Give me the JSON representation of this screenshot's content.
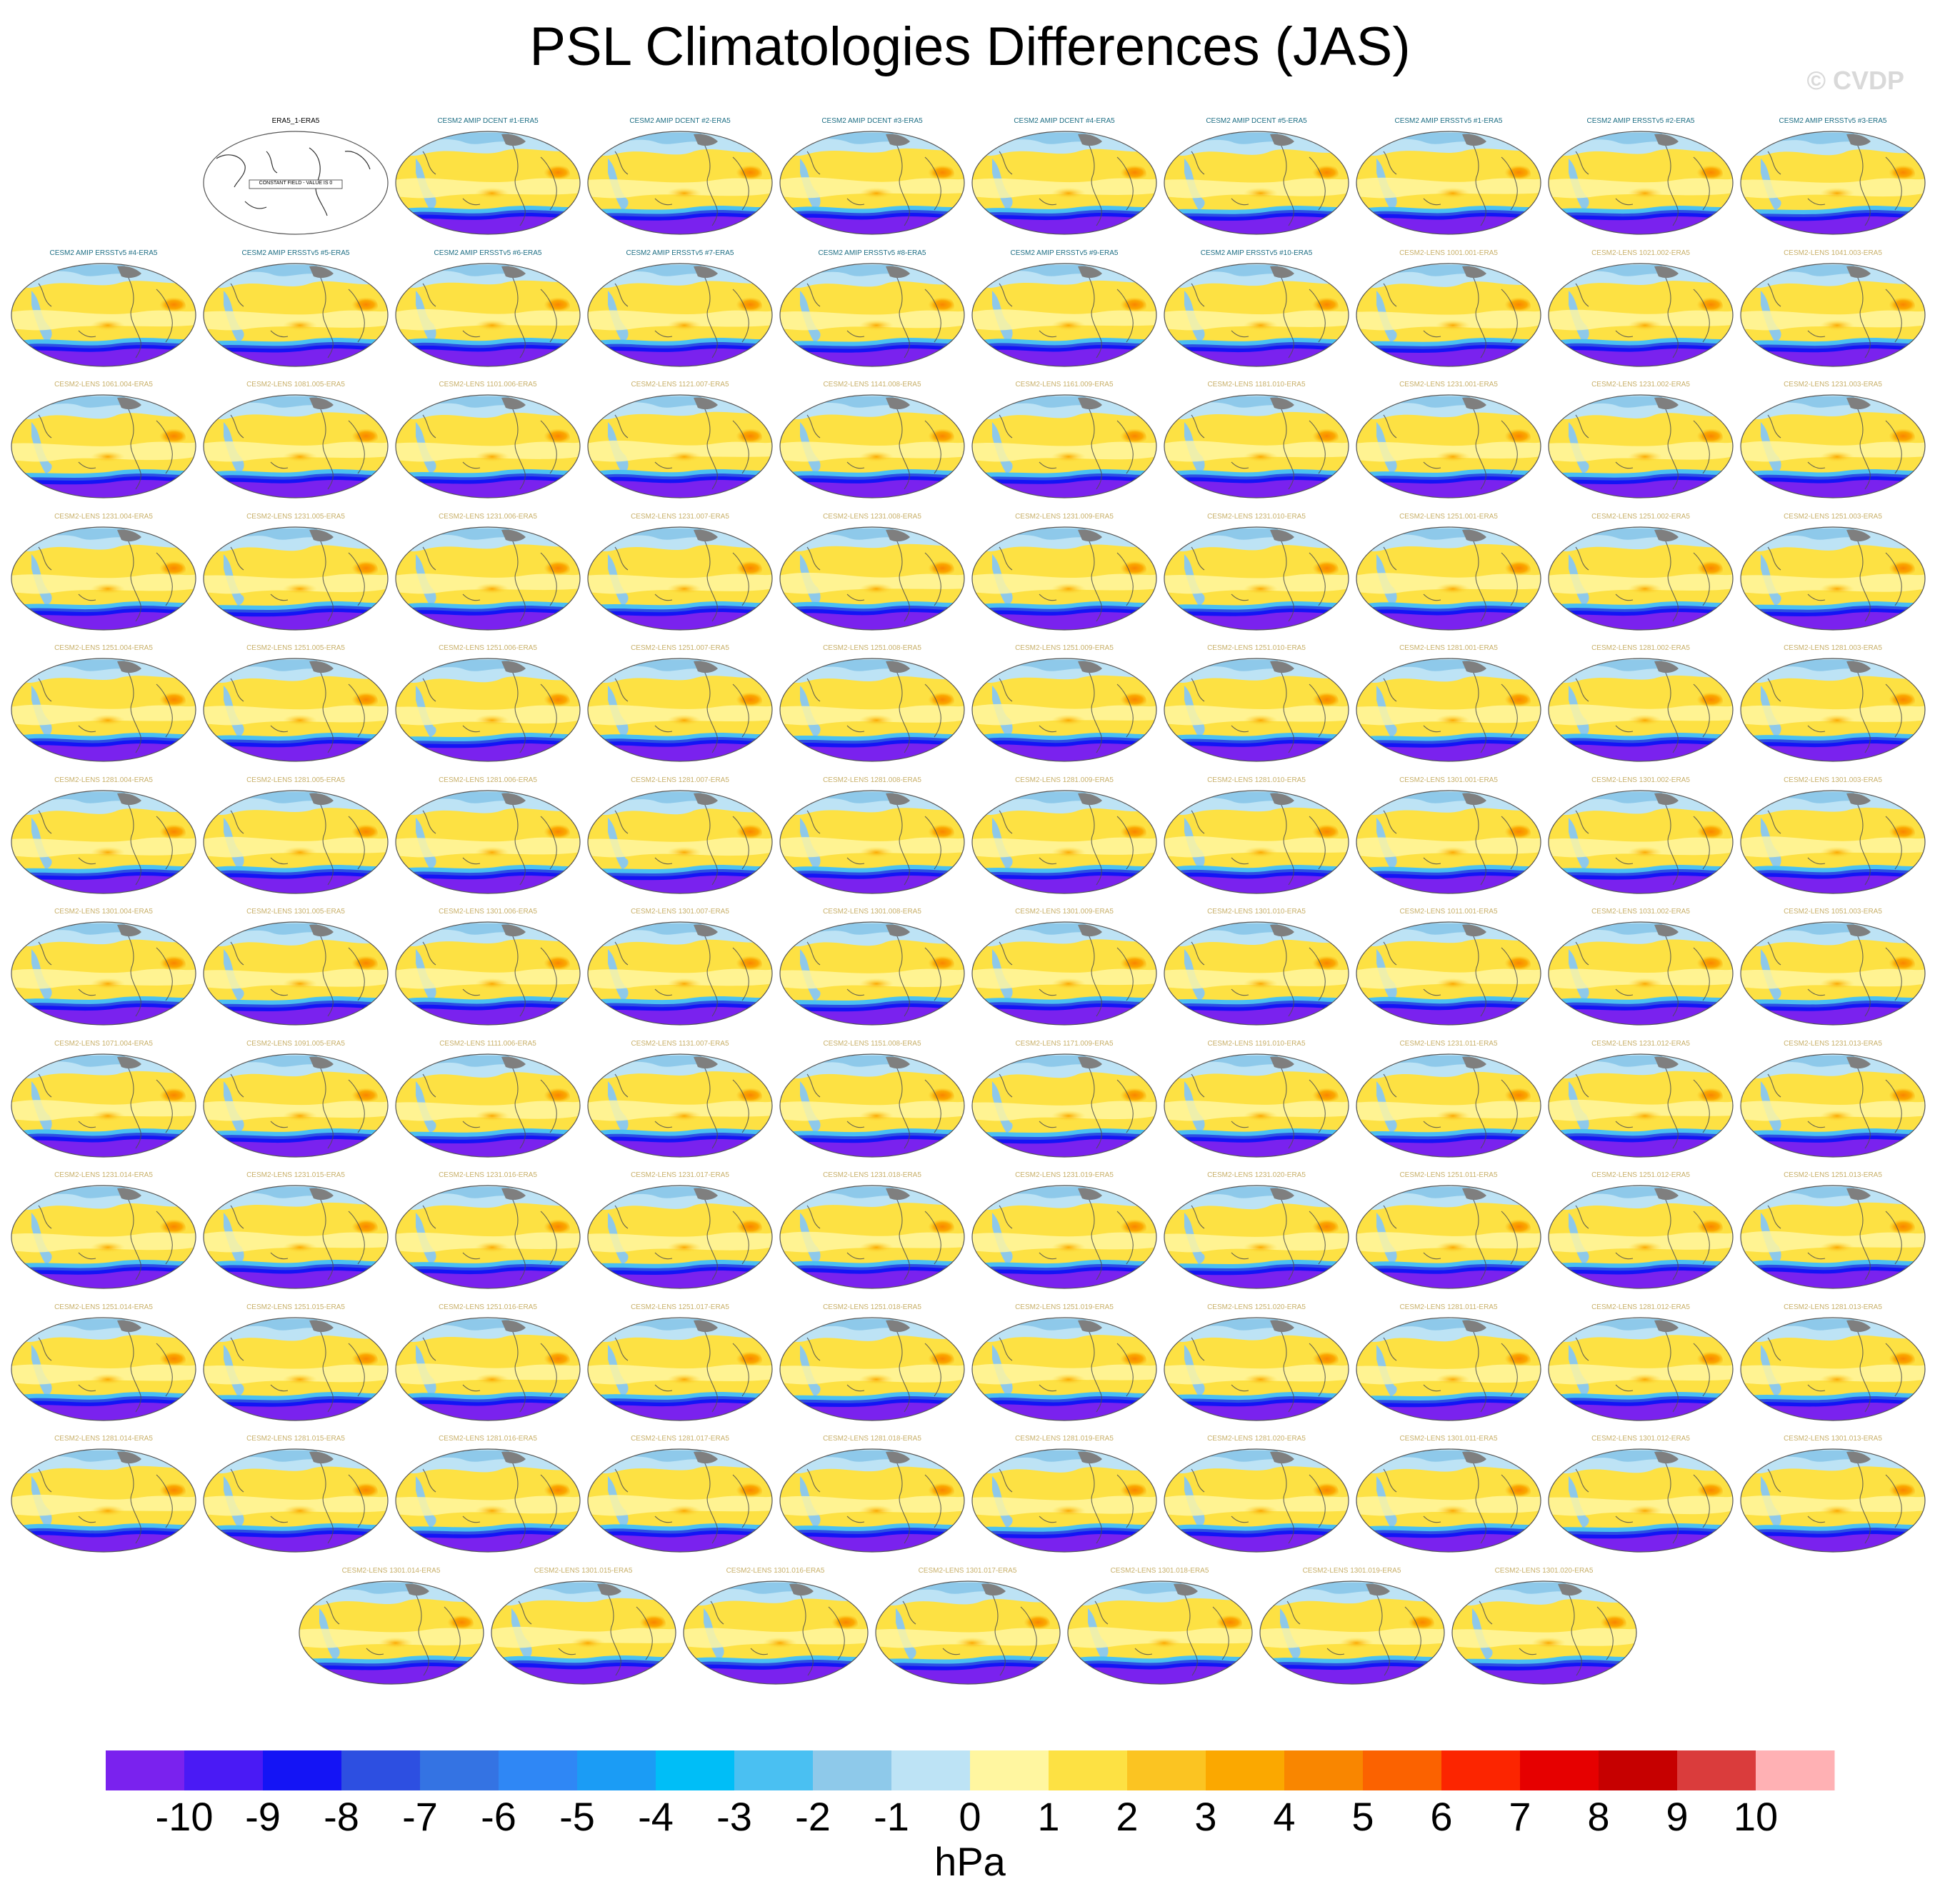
{
  "title": "PSL Climatologies Differences (JAS)",
  "copyright": "© CVDP",
  "chart_data": {
    "type": "map-panel-grid",
    "variable": "PSL",
    "season": "JAS",
    "units": "hPa",
    "colorbar": {
      "ticks": [
        "-10",
        "-9",
        "-8",
        "-7",
        "-6",
        "-5",
        "-4",
        "-3",
        "-2",
        "-1",
        "0",
        "1",
        "2",
        "3",
        "4",
        "5",
        "6",
        "7",
        "8",
        "9",
        "10"
      ],
      "colors": [
        "#7a22ee",
        "#4a1af5",
        "#1414f5",
        "#2d4fe1",
        "#3473e3",
        "#2f87f5",
        "#1b9cf5",
        "#00bef7",
        "#4ac0f2",
        "#8ec9ea",
        "#bde3f5",
        "#fff6a0",
        "#fde143",
        "#fbc422",
        "#fba800",
        "#f98600",
        "#fb6200",
        "#fc2500",
        "#e60000",
        "#c60000",
        "#da3c3c",
        "#ffb1b4"
      ],
      "label": "hPa"
    },
    "panels": [
      {
        "title": "ERA5_1-ERA5",
        "kind": "obs",
        "note": "CONSTANT FIELD - VALUE IS 0"
      },
      {
        "title": "CESM2 AMIP DCENT #1-ERA5",
        "kind": "amip"
      },
      {
        "title": "CESM2 AMIP DCENT #2-ERA5",
        "kind": "amip"
      },
      {
        "title": "CESM2 AMIP DCENT #3-ERA5",
        "kind": "amip"
      },
      {
        "title": "CESM2 AMIP DCENT #4-ERA5",
        "kind": "amip"
      },
      {
        "title": "CESM2 AMIP DCENT #5-ERA5",
        "kind": "amip"
      },
      {
        "title": "CESM2 AMIP ERSSTv5 #1-ERA5",
        "kind": "amip"
      },
      {
        "title": "CESM2 AMIP ERSSTv5 #2-ERA5",
        "kind": "amip"
      },
      {
        "title": "CESM2 AMIP ERSSTv5 #3-ERA5",
        "kind": "amip"
      },
      {
        "title": "CESM2 AMIP ERSSTv5 #4-ERA5",
        "kind": "amip"
      },
      {
        "title": "CESM2 AMIP ERSSTv5 #5-ERA5",
        "kind": "amip"
      },
      {
        "title": "CESM2 AMIP ERSSTv5 #6-ERA5",
        "kind": "amip"
      },
      {
        "title": "CESM2 AMIP ERSSTv5 #7-ERA5",
        "kind": "amip"
      },
      {
        "title": "CESM2 AMIP ERSSTv5 #8-ERA5",
        "kind": "amip"
      },
      {
        "title": "CESM2 AMIP ERSSTv5 #9-ERA5",
        "kind": "amip"
      },
      {
        "title": "CESM2 AMIP ERSSTv5 #10-ERA5",
        "kind": "amip"
      },
      {
        "title": "CESM2-LENS 1001.001-ERA5",
        "kind": "lens"
      },
      {
        "title": "CESM2-LENS 1021.002-ERA5",
        "kind": "lens"
      },
      {
        "title": "CESM2-LENS 1041.003-ERA5",
        "kind": "lens"
      },
      {
        "title": "CESM2-LENS 1061.004-ERA5",
        "kind": "lens"
      },
      {
        "title": "CESM2-LENS 1081.005-ERA5",
        "kind": "lens"
      },
      {
        "title": "CESM2-LENS 1101.006-ERA5",
        "kind": "lens"
      },
      {
        "title": "CESM2-LENS 1121.007-ERA5",
        "kind": "lens"
      },
      {
        "title": "CESM2-LENS 1141.008-ERA5",
        "kind": "lens"
      },
      {
        "title": "CESM2-LENS 1161.009-ERA5",
        "kind": "lens"
      },
      {
        "title": "CESM2-LENS 1181.010-ERA5",
        "kind": "lens"
      },
      {
        "title": "CESM2-LENS 1231.001-ERA5",
        "kind": "lens"
      },
      {
        "title": "CESM2-LENS 1231.002-ERA5",
        "kind": "lens"
      },
      {
        "title": "CESM2-LENS 1231.003-ERA5",
        "kind": "lens"
      },
      {
        "title": "CESM2-LENS 1231.004-ERA5",
        "kind": "lens"
      },
      {
        "title": "CESM2-LENS 1231.005-ERA5",
        "kind": "lens"
      },
      {
        "title": "CESM2-LENS 1231.006-ERA5",
        "kind": "lens"
      },
      {
        "title": "CESM2-LENS 1231.007-ERA5",
        "kind": "lens"
      },
      {
        "title": "CESM2-LENS 1231.008-ERA5",
        "kind": "lens"
      },
      {
        "title": "CESM2-LENS 1231.009-ERA5",
        "kind": "lens"
      },
      {
        "title": "CESM2-LENS 1231.010-ERA5",
        "kind": "lens"
      },
      {
        "title": "CESM2-LENS 1251.001-ERA5",
        "kind": "lens"
      },
      {
        "title": "CESM2-LENS 1251.002-ERA5",
        "kind": "lens"
      },
      {
        "title": "CESM2-LENS 1251.003-ERA5",
        "kind": "lens"
      },
      {
        "title": "CESM2-LENS 1251.004-ERA5",
        "kind": "lens"
      },
      {
        "title": "CESM2-LENS 1251.005-ERA5",
        "kind": "lens"
      },
      {
        "title": "CESM2-LENS 1251.006-ERA5",
        "kind": "lens"
      },
      {
        "title": "CESM2-LENS 1251.007-ERA5",
        "kind": "lens"
      },
      {
        "title": "CESM2-LENS 1251.008-ERA5",
        "kind": "lens"
      },
      {
        "title": "CESM2-LENS 1251.009-ERA5",
        "kind": "lens"
      },
      {
        "title": "CESM2-LENS 1251.010-ERA5",
        "kind": "lens"
      },
      {
        "title": "CESM2-LENS 1281.001-ERA5",
        "kind": "lens"
      },
      {
        "title": "CESM2-LENS 1281.002-ERA5",
        "kind": "lens"
      },
      {
        "title": "CESM2-LENS 1281.003-ERA5",
        "kind": "lens"
      },
      {
        "title": "CESM2-LENS 1281.004-ERA5",
        "kind": "lens"
      },
      {
        "title": "CESM2-LENS 1281.005-ERA5",
        "kind": "lens"
      },
      {
        "title": "CESM2-LENS 1281.006-ERA5",
        "kind": "lens"
      },
      {
        "title": "CESM2-LENS 1281.007-ERA5",
        "kind": "lens"
      },
      {
        "title": "CESM2-LENS 1281.008-ERA5",
        "kind": "lens"
      },
      {
        "title": "CESM2-LENS 1281.009-ERA5",
        "kind": "lens"
      },
      {
        "title": "CESM2-LENS 1281.010-ERA5",
        "kind": "lens"
      },
      {
        "title": "CESM2-LENS 1301.001-ERA5",
        "kind": "lens"
      },
      {
        "title": "CESM2-LENS 1301.002-ERA5",
        "kind": "lens"
      },
      {
        "title": "CESM2-LENS 1301.003-ERA5",
        "kind": "lens"
      },
      {
        "title": "CESM2-LENS 1301.004-ERA5",
        "kind": "lens"
      },
      {
        "title": "CESM2-LENS 1301.005-ERA5",
        "kind": "lens"
      },
      {
        "title": "CESM2-LENS 1301.006-ERA5",
        "kind": "lens"
      },
      {
        "title": "CESM2-LENS 1301.007-ERA5",
        "kind": "lens"
      },
      {
        "title": "CESM2-LENS 1301.008-ERA5",
        "kind": "lens"
      },
      {
        "title": "CESM2-LENS 1301.009-ERA5",
        "kind": "lens"
      },
      {
        "title": "CESM2-LENS 1301.010-ERA5",
        "kind": "lens"
      },
      {
        "title": "CESM2-LENS 1011.001-ERA5",
        "kind": "lens"
      },
      {
        "title": "CESM2-LENS 1031.002-ERA5",
        "kind": "lens"
      },
      {
        "title": "CESM2-LENS 1051.003-ERA5",
        "kind": "lens"
      },
      {
        "title": "CESM2-LENS 1071.004-ERA5",
        "kind": "lens"
      },
      {
        "title": "CESM2-LENS 1091.005-ERA5",
        "kind": "lens"
      },
      {
        "title": "CESM2-LENS 1111.006-ERA5",
        "kind": "lens"
      },
      {
        "title": "CESM2-LENS 1131.007-ERA5",
        "kind": "lens"
      },
      {
        "title": "CESM2-LENS 1151.008-ERA5",
        "kind": "lens"
      },
      {
        "title": "CESM2-LENS 1171.009-ERA5",
        "kind": "lens"
      },
      {
        "title": "CESM2-LENS 1191.010-ERA5",
        "kind": "lens"
      },
      {
        "title": "CESM2-LENS 1231.011-ERA5",
        "kind": "lens"
      },
      {
        "title": "CESM2-LENS 1231.012-ERA5",
        "kind": "lens"
      },
      {
        "title": "CESM2-LENS 1231.013-ERA5",
        "kind": "lens"
      },
      {
        "title": "CESM2-LENS 1231.014-ERA5",
        "kind": "lens"
      },
      {
        "title": "CESM2-LENS 1231.015-ERA5",
        "kind": "lens"
      },
      {
        "title": "CESM2-LENS 1231.016-ERA5",
        "kind": "lens"
      },
      {
        "title": "CESM2-LENS 1231.017-ERA5",
        "kind": "lens"
      },
      {
        "title": "CESM2-LENS 1231.018-ERA5",
        "kind": "lens"
      },
      {
        "title": "CESM2-LENS 1231.019-ERA5",
        "kind": "lens"
      },
      {
        "title": "CESM2-LENS 1231.020-ERA5",
        "kind": "lens"
      },
      {
        "title": "CESM2-LENS 1251.011-ERA5",
        "kind": "lens"
      },
      {
        "title": "CESM2-LENS 1251.012-ERA5",
        "kind": "lens"
      },
      {
        "title": "CESM2-LENS 1251.013-ERA5",
        "kind": "lens"
      },
      {
        "title": "CESM2-LENS 1251.014-ERA5",
        "kind": "lens"
      },
      {
        "title": "CESM2-LENS 1251.015-ERA5",
        "kind": "lens"
      },
      {
        "title": "CESM2-LENS 1251.016-ERA5",
        "kind": "lens"
      },
      {
        "title": "CESM2-LENS 1251.017-ERA5",
        "kind": "lens"
      },
      {
        "title": "CESM2-LENS 1251.018-ERA5",
        "kind": "lens"
      },
      {
        "title": "CESM2-LENS 1251.019-ERA5",
        "kind": "lens"
      },
      {
        "title": "CESM2-LENS 1251.020-ERA5",
        "kind": "lens"
      },
      {
        "title": "CESM2-LENS 1281.011-ERA5",
        "kind": "lens"
      },
      {
        "title": "CESM2-LENS 1281.012-ERA5",
        "kind": "lens"
      },
      {
        "title": "CESM2-LENS 1281.013-ERA5",
        "kind": "lens"
      },
      {
        "title": "CESM2-LENS 1281.014-ERA5",
        "kind": "lens"
      },
      {
        "title": "CESM2-LENS 1281.015-ERA5",
        "kind": "lens"
      },
      {
        "title": "CESM2-LENS 1281.016-ERA5",
        "kind": "lens"
      },
      {
        "title": "CESM2-LENS 1281.017-ERA5",
        "kind": "lens"
      },
      {
        "title": "CESM2-LENS 1281.018-ERA5",
        "kind": "lens"
      },
      {
        "title": "CESM2-LENS 1281.019-ERA5",
        "kind": "lens"
      },
      {
        "title": "CESM2-LENS 1281.020-ERA5",
        "kind": "lens"
      },
      {
        "title": "CESM2-LENS 1301.011-ERA5",
        "kind": "lens"
      },
      {
        "title": "CESM2-LENS 1301.012-ERA5",
        "kind": "lens"
      },
      {
        "title": "CESM2-LENS 1301.013-ERA5",
        "kind": "lens"
      },
      {
        "title": "CESM2-LENS 1301.014-ERA5",
        "kind": "lens"
      },
      {
        "title": "CESM2-LENS 1301.015-ERA5",
        "kind": "lens"
      },
      {
        "title": "CESM2-LENS 1301.016-ERA5",
        "kind": "lens"
      },
      {
        "title": "CESM2-LENS 1301.017-ERA5",
        "kind": "lens"
      },
      {
        "title": "CESM2-LENS 1301.018-ERA5",
        "kind": "lens"
      },
      {
        "title": "CESM2-LENS 1301.019-ERA5",
        "kind": "lens"
      },
      {
        "title": "CESM2-LENS 1301.020-ERA5",
        "kind": "lens"
      }
    ]
  }
}
